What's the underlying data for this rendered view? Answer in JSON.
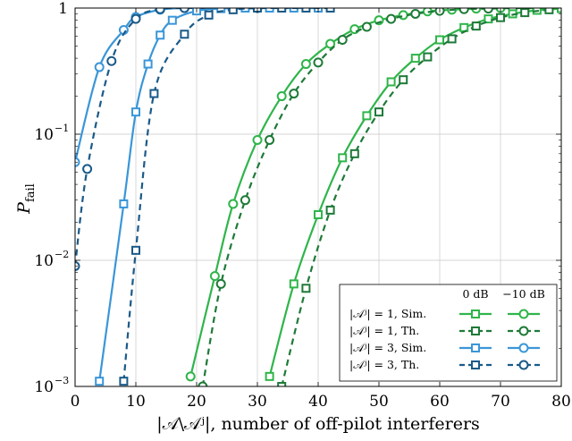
{
  "chart_data": {
    "type": "line",
    "title": "",
    "xlabel": "|𝒜\\𝒜ʲ|, number of off-pilot interferers",
    "ylabel": "P_fail",
    "ylabel_main": "P",
    "ylabel_sub": "fail",
    "xlim": [
      0,
      80
    ],
    "ylim": [
      0.001,
      1
    ],
    "yscale": "log",
    "grid": true,
    "legend_position": "bottom-right",
    "x_ticks": [
      {
        "value": 0,
        "label": "0"
      },
      {
        "value": 10,
        "label": "10"
      },
      {
        "value": 20,
        "label": "20"
      },
      {
        "value": 30,
        "label": "30"
      },
      {
        "value": 40,
        "label": "40"
      },
      {
        "value": 50,
        "label": "50"
      },
      {
        "value": 60,
        "label": "60"
      },
      {
        "value": 70,
        "label": "70"
      },
      {
        "value": 80,
        "label": "80"
      }
    ],
    "y_ticks": [
      {
        "value": 1,
        "base": "1",
        "exp": ""
      },
      {
        "value": 0.1,
        "base": "10",
        "exp": "−1"
      },
      {
        "value": 0.01,
        "base": "10",
        "exp": "−2"
      },
      {
        "value": 0.001,
        "base": "10",
        "exp": "−3"
      }
    ],
    "legend": {
      "col_headers": [
        "0 dB",
        "−10 dB"
      ],
      "rows": [
        {
          "label": "|𝒜ʲ| = 1, Sim.",
          "dash": "solid",
          "colors": [
            "#2fb54a",
            "#2fb54a"
          ],
          "markers": [
            "square",
            "circle"
          ]
        },
        {
          "label": "|𝒜ʲ| = 1, Th.",
          "dash": "dashed",
          "colors": [
            "#1e7a38",
            "#1e7a38"
          ],
          "markers": [
            "square",
            "circle"
          ]
        },
        {
          "label": "|𝒜ʲ| = 3, Sim.",
          "dash": "solid",
          "colors": [
            "#3a96d8",
            "#3a96d8"
          ],
          "markers": [
            "square",
            "circle"
          ]
        },
        {
          "label": "|𝒜ʲ| = 3, Th.",
          "dash": "dashed",
          "colors": [
            "#1a5a88",
            "#1a5a88"
          ],
          "markers": [
            "square",
            "circle"
          ]
        }
      ]
    },
    "series": [
      {
        "color": "#3a96d8",
        "dash": "solid",
        "marker": "circle",
        "x": [
          0,
          4,
          8,
          10,
          14,
          18,
          22,
          26,
          30
        ],
        "y": [
          0.06,
          0.34,
          0.67,
          0.85,
          0.97,
          1.0,
          1.0,
          1.0,
          1.0
        ]
      },
      {
        "color": "#1a5a88",
        "dash": "dashed",
        "marker": "circle",
        "x": [
          0,
          2,
          6,
          10,
          14,
          18,
          22,
          26,
          30
        ],
        "y": [
          0.009,
          0.053,
          0.38,
          0.82,
          0.98,
          1.0,
          1.0,
          1.0,
          1.0
        ]
      },
      {
        "color": "#3a96d8",
        "dash": "solid",
        "marker": "square",
        "x": [
          4,
          8,
          10,
          12,
          14,
          16,
          20,
          24,
          28,
          32,
          36,
          40
        ],
        "y": [
          0.0011,
          0.028,
          0.15,
          0.36,
          0.61,
          0.8,
          0.95,
          0.99,
          1.0,
          1.0,
          1.0,
          1.0
        ]
      },
      {
        "color": "#1a5a88",
        "dash": "dashed",
        "marker": "square",
        "x": [
          8,
          10,
          13,
          18,
          22,
          26,
          30,
          34,
          38,
          42
        ],
        "y": [
          0.0011,
          0.012,
          0.21,
          0.62,
          0.88,
          0.97,
          1.0,
          1.0,
          1.0,
          1.0
        ]
      },
      {
        "color": "#2fb54a",
        "dash": "solid",
        "marker": "circle",
        "x": [
          19,
          23,
          26,
          30,
          34,
          38,
          42,
          46,
          50,
          54,
          58,
          62,
          66,
          70,
          74,
          78
        ],
        "y": [
          0.0012,
          0.0075,
          0.028,
          0.09,
          0.2,
          0.36,
          0.52,
          0.68,
          0.8,
          0.88,
          0.94,
          0.97,
          0.99,
          1.0,
          1.0,
          1.0
        ]
      },
      {
        "color": "#1e7a38",
        "dash": "dashed",
        "marker": "circle",
        "x": [
          21,
          24,
          28,
          32,
          36,
          40,
          44,
          48,
          52,
          56,
          60,
          64,
          68,
          72,
          76,
          80
        ],
        "y": [
          0.001,
          0.0065,
          0.03,
          0.09,
          0.21,
          0.37,
          0.56,
          0.71,
          0.82,
          0.9,
          0.95,
          0.98,
          0.99,
          1.0,
          1.0,
          1.0
        ]
      },
      {
        "color": "#2fb54a",
        "dash": "solid",
        "marker": "square",
        "x": [
          32,
          36,
          40,
          44,
          48,
          52,
          56,
          60,
          64,
          68,
          72,
          76,
          80
        ],
        "y": [
          0.0012,
          0.0065,
          0.023,
          0.065,
          0.14,
          0.26,
          0.4,
          0.56,
          0.7,
          0.82,
          0.9,
          0.96,
          0.99
        ]
      },
      {
        "color": "#1e7a38",
        "dash": "dashed",
        "marker": "square",
        "x": [
          34,
          38,
          42,
          46,
          50,
          54,
          58,
          62,
          66,
          70,
          74,
          78
        ],
        "y": [
          0.001,
          0.006,
          0.025,
          0.07,
          0.15,
          0.27,
          0.41,
          0.57,
          0.72,
          0.84,
          0.92,
          0.97
        ]
      }
    ]
  }
}
